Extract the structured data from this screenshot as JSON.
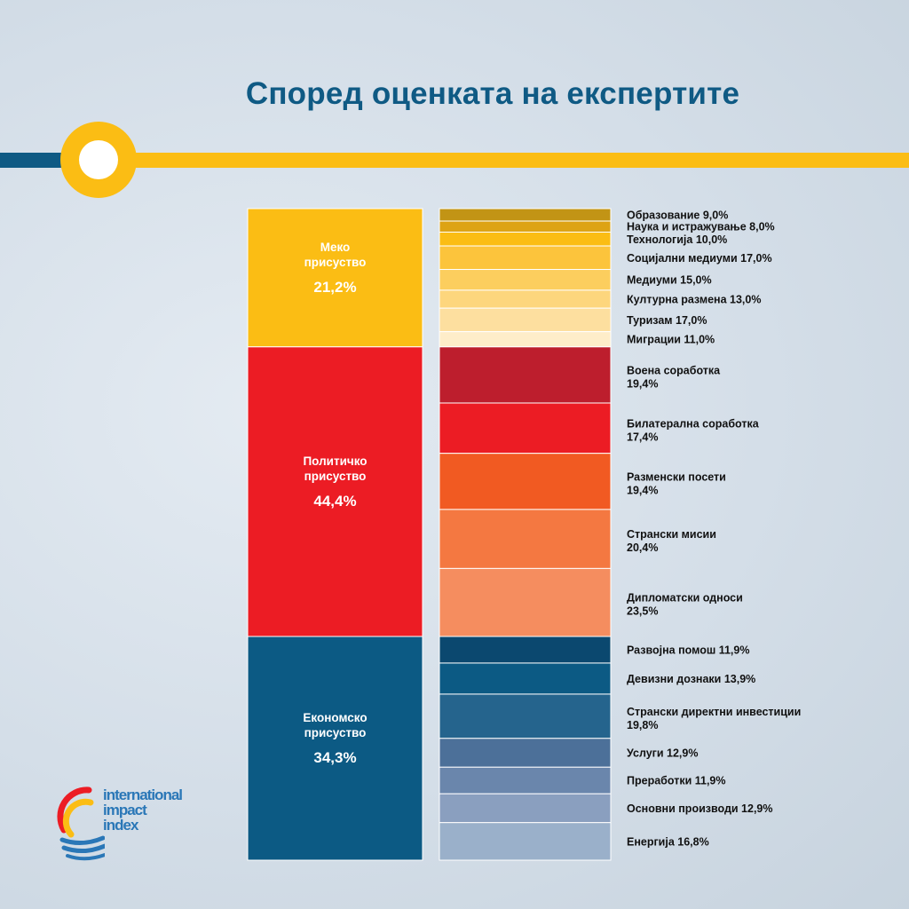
{
  "title": "Според оценката на експертите",
  "logo": {
    "line1": "international",
    "line2": "impact",
    "line3": "index"
  },
  "colors": {
    "title": "#0f5a84",
    "accent_yellow": "#fbbd14",
    "accent_blue": "#0f5a84",
    "soft": "#fbbd14",
    "political": "#ec1c24",
    "economic": "#0c5a84"
  },
  "chart_data": {
    "type": "stacked-bar",
    "groups": [
      {
        "name_lines": [
          "Меко",
          "присуство"
        ],
        "percent_label": "21,2%",
        "value": 21.2,
        "color": "#fbbd14",
        "items": [
          {
            "label": "Образование 9,0%",
            "value": 9.0,
            "color": "#c29415"
          },
          {
            "label": "Наука и истражување 8,0%",
            "value": 8.0,
            "color": "#dda314"
          },
          {
            "label": "Технологија 10,0%",
            "value": 10.0,
            "color": "#fbbd14"
          },
          {
            "label": "Социјални медиуми 17,0%",
            "value": 17.0,
            "color": "#fcc43c"
          },
          {
            "label": "Медиуми 15,0%",
            "value": 15.0,
            "color": "#fcce5e"
          },
          {
            "label": "Културна размена 13,0%",
            "value": 13.0,
            "color": "#fdd67d"
          },
          {
            "label": "Туризам 17,0%",
            "value": 17.0,
            "color": "#fddf9f"
          },
          {
            "label": "Миграции 11,0%",
            "value": 11.0,
            "color": "#feedc9"
          }
        ]
      },
      {
        "name_lines": [
          "Политичко",
          "присуство"
        ],
        "percent_label": "44,4%",
        "value": 44.4,
        "color": "#ec1c24",
        "items": [
          {
            "label_lines": [
              "Воена соработка",
              "19,4%"
            ],
            "value": 19.4,
            "color": "#bd1e2d"
          },
          {
            "label_lines": [
              "Билатерална соработка",
              "17,4%"
            ],
            "value": 17.4,
            "color": "#ec1c24"
          },
          {
            "label_lines": [
              "Разменски посети",
              "19,4%"
            ],
            "value": 19.4,
            "color": "#f15a22"
          },
          {
            "label_lines": [
              "Странски мисии",
              "20,4%"
            ],
            "value": 20.4,
            "color": "#f47841"
          },
          {
            "label_lines": [
              "Дипломатски односи",
              "23,5%"
            ],
            "value": 23.5,
            "color": "#f58d5f"
          }
        ]
      },
      {
        "name_lines": [
          "Економско",
          "присуство"
        ],
        "percent_label": "34,3%",
        "value": 34.3,
        "color": "#0c5a84",
        "items": [
          {
            "label": "Развојна помош   11,9%",
            "value": 11.9,
            "color": "#0b486f"
          },
          {
            "label": "Девизни дознаки  13,9%",
            "value": 13.9,
            "color": "#0c5a84"
          },
          {
            "label_lines": [
              "Странски директни инвестиции",
              "19,8%"
            ],
            "value": 19.8,
            "color": "#25648d"
          },
          {
            "label": "Услуги  12,9%",
            "value": 12.9,
            "color": "#4c7099"
          },
          {
            "label": "Преработки   11,9%",
            "value": 11.9,
            "color": "#6a86ac"
          },
          {
            "label": "Основни  производи  12,9%",
            "value": 12.9,
            "color": "#8a9fbf"
          },
          {
            "label": "Енергија 16,8%",
            "value": 16.8,
            "color": "#9ab0ca"
          }
        ]
      }
    ]
  }
}
